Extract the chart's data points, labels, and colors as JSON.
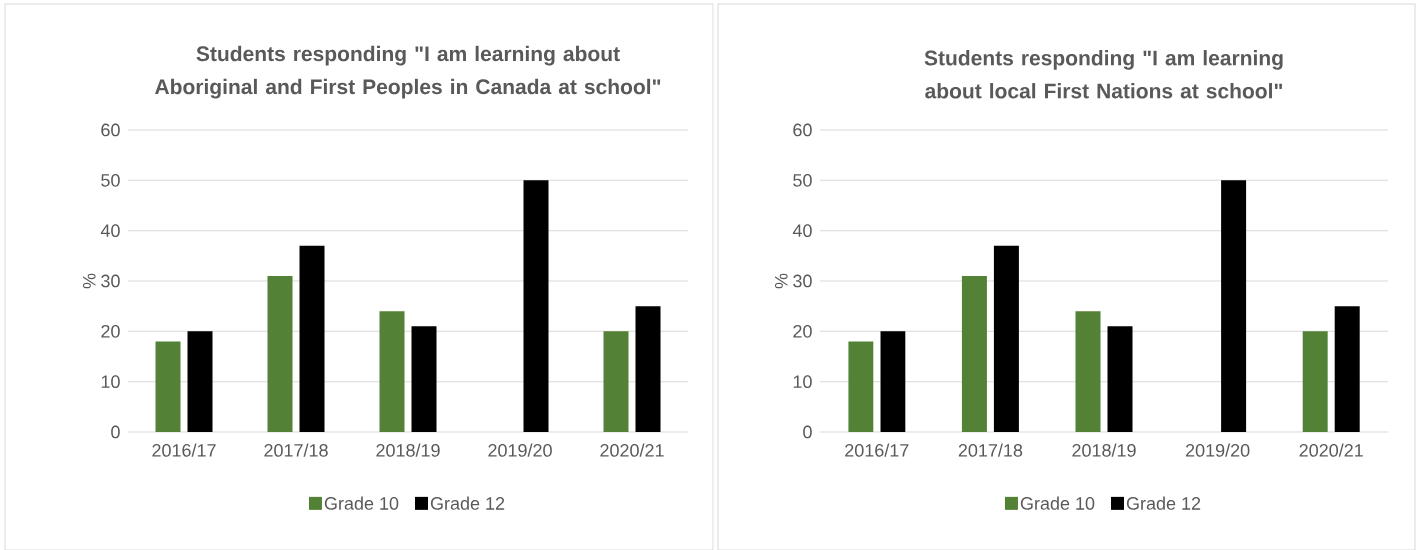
{
  "chart_data": [
    {
      "type": "bar",
      "title": "Students responding \"I am learning about Aboriginal and First Peoples in Canada at school\"",
      "ylabel": "%",
      "categories": [
        "2016/17",
        "2017/18",
        "2018/19",
        "2019/20",
        "2020/21"
      ],
      "series": [
        {
          "name": "Grade 10",
          "color": "#538135",
          "values": [
            18,
            31,
            24,
            null,
            20
          ]
        },
        {
          "name": "Grade 12",
          "color": "#000000",
          "values": [
            20,
            37,
            21,
            50,
            25
          ]
        }
      ],
      "ylim": [
        0,
        60
      ],
      "yticks": [
        0,
        10,
        20,
        30,
        40,
        50,
        60
      ],
      "grid": "y",
      "legend": "bottom"
    },
    {
      "type": "bar",
      "title": "Students responding \"I am learning about local First Nations at school\"",
      "ylabel": "%",
      "categories": [
        "2016/17",
        "2017/18",
        "2018/19",
        "2019/20",
        "2020/21"
      ],
      "series": [
        {
          "name": "Grade 10",
          "color": "#538135",
          "values": [
            18,
            31,
            24,
            null,
            20
          ]
        },
        {
          "name": "Grade 12",
          "color": "#000000",
          "values": [
            20,
            37,
            21,
            50,
            25
          ]
        }
      ],
      "ylim": [
        0,
        60
      ],
      "yticks": [
        0,
        10,
        20,
        30,
        40,
        50,
        60
      ],
      "grid": "y",
      "legend": "bottom"
    }
  ]
}
